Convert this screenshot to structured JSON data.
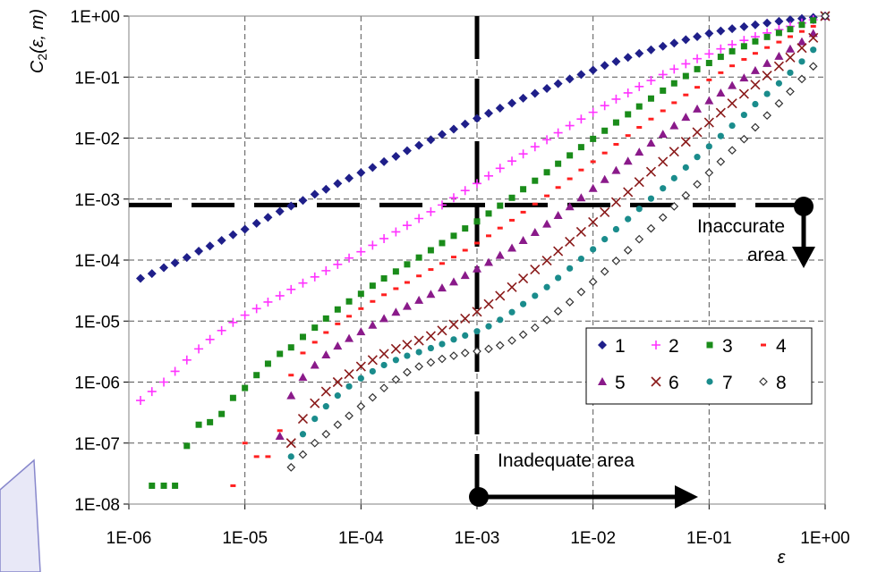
{
  "chart_data": {
    "type": "scatter",
    "title": "",
    "xlabel": "ε",
    "ylabel": {
      "base": "C",
      "sub": "2",
      "args": "(ε, m)"
    },
    "x_scale": "log",
    "y_scale": "log",
    "xlim": [
      1e-06,
      1
    ],
    "ylim": [
      1e-08,
      1
    ],
    "x_ticks": [
      "1E-06",
      "1E-05",
      "1E-04",
      "1E-03",
      "1E-02",
      "1E-01",
      "1E+00"
    ],
    "y_ticks": [
      "1E+00",
      "1E-01",
      "1E-02",
      "1E-03",
      "1E-04",
      "1E-05",
      "1E-06",
      "1E-07",
      "1E-08"
    ],
    "grid": true,
    "legend_position": "lower-right",
    "series": [
      {
        "name": "1",
        "color": "#1f1f8a",
        "marker": "diamond",
        "x": [
          1.26e-06,
          1.58e-06,
          2e-06,
          2.5e-06,
          3.16e-06,
          4e-06,
          5e-06,
          6.3e-06,
          7.9e-06,
          1e-05,
          1.26e-05,
          1.58e-05,
          2e-05,
          2.5e-05,
          3.16e-05,
          4e-05,
          5e-05,
          6.3e-05,
          7.9e-05,
          0.0001,
          0.000126,
          0.000158,
          0.0002,
          0.00025,
          0.000316,
          0.0004,
          0.0005,
          0.00063,
          0.00079,
          0.001,
          0.00126,
          0.00158,
          0.002,
          0.0025,
          0.00316,
          0.004,
          0.005,
          0.0063,
          0.0079,
          0.01,
          0.0126,
          0.0158,
          0.02,
          0.025,
          0.0316,
          0.04,
          0.05,
          0.063,
          0.079,
          0.1,
          0.126,
          0.158,
          0.2,
          0.25,
          0.316,
          0.4,
          0.5,
          0.63,
          0.79,
          1
        ],
        "y": [
          5e-05,
          6e-05,
          7.5e-05,
          9e-05,
          0.00011,
          0.00014,
          0.00017,
          0.00021,
          0.00026,
          0.00032,
          0.0004,
          0.0005,
          0.00063,
          0.00077,
          0.00095,
          0.0012,
          0.00145,
          0.0018,
          0.0022,
          0.0027,
          0.0033,
          0.0041,
          0.005,
          0.0062,
          0.0076,
          0.0094,
          0.0115,
          0.014,
          0.017,
          0.021,
          0.0255,
          0.031,
          0.0375,
          0.045,
          0.054,
          0.065,
          0.078,
          0.093,
          0.11,
          0.13,
          0.155,
          0.18,
          0.21,
          0.245,
          0.28,
          0.32,
          0.36,
          0.41,
          0.46,
          0.52,
          0.57,
          0.62,
          0.67,
          0.72,
          0.77,
          0.82,
          0.87,
          0.91,
          0.95,
          1
        ]
      },
      {
        "name": "2",
        "color": "#ff33ff",
        "marker": "plus",
        "x": [
          1.26e-06,
          1.58e-06,
          2e-06,
          2.5e-06,
          3.16e-06,
          4e-06,
          5e-06,
          6.3e-06,
          7.9e-06,
          1e-05,
          1.26e-05,
          1.58e-05,
          2e-05,
          2.5e-05,
          3.16e-05,
          4e-05,
          5e-05,
          6.3e-05,
          7.9e-05,
          0.0001,
          0.000126,
          0.000158,
          0.0002,
          0.00025,
          0.000316,
          0.0004,
          0.0005,
          0.00063,
          0.00079,
          0.001,
          0.00126,
          0.00158,
          0.002,
          0.0025,
          0.00316,
          0.004,
          0.005,
          0.0063,
          0.0079,
          0.01,
          0.0126,
          0.0158,
          0.02,
          0.025,
          0.0316,
          0.04,
          0.05,
          0.063,
          0.079,
          0.1,
          0.126,
          0.158,
          0.2,
          0.25,
          0.316,
          0.4,
          0.5,
          0.63,
          0.79,
          1
        ],
        "y": [
          5e-07,
          7e-07,
          1e-06,
          1.5e-06,
          2.3e-06,
          3.5e-06,
          5e-06,
          7e-06,
          9.5e-06,
          1.25e-05,
          1.6e-05,
          2.05e-05,
          2.6e-05,
          3.3e-05,
          4.2e-05,
          5.3e-05,
          6.7e-05,
          8.5e-05,
          0.000108,
          0.000137,
          0.000175,
          0.000225,
          0.00029,
          0.00037,
          0.00048,
          0.00062,
          0.0008,
          0.00105,
          0.00138,
          0.0018,
          0.0024,
          0.0032,
          0.0042,
          0.0055,
          0.0072,
          0.0094,
          0.0122,
          0.016,
          0.0205,
          0.0265,
          0.034,
          0.0435,
          0.055,
          0.07,
          0.088,
          0.11,
          0.135,
          0.165,
          0.2,
          0.24,
          0.29,
          0.34,
          0.4,
          0.46,
          0.53,
          0.6,
          0.68,
          0.77,
          0.87,
          1
        ]
      },
      {
        "name": "3",
        "color": "#1a8c1a",
        "marker": "square",
        "x": [
          1.58e-06,
          2e-06,
          2.5e-06,
          3.16e-06,
          4e-06,
          5e-06,
          6.3e-06,
          7.9e-06,
          1e-05,
          1.26e-05,
          1.58e-05,
          2e-05,
          2.5e-05,
          3.16e-05,
          4e-05,
          5e-05,
          6.3e-05,
          7.9e-05,
          0.0001,
          0.000126,
          0.000158,
          0.0002,
          0.00025,
          0.000316,
          0.0004,
          0.0005,
          0.00063,
          0.00079,
          0.001,
          0.00126,
          0.00158,
          0.002,
          0.0025,
          0.00316,
          0.004,
          0.005,
          0.0063,
          0.0079,
          0.01,
          0.0126,
          0.0158,
          0.02,
          0.025,
          0.0316,
          0.04,
          0.05,
          0.063,
          0.079,
          0.1,
          0.126,
          0.158,
          0.2,
          0.25,
          0.316,
          0.4,
          0.5,
          0.63,
          0.79,
          1
        ],
        "y": [
          2e-08,
          2e-08,
          2e-08,
          9e-08,
          2e-07,
          2.2e-07,
          3e-07,
          5.5e-07,
          8e-07,
          1.3e-06,
          2e-06,
          2.9e-06,
          3.7e-06,
          5.5e-06,
          7.8e-06,
          1.1e-05,
          1.55e-05,
          2.1e-05,
          2.8e-05,
          3.8e-05,
          5e-05,
          6.5e-05,
          8.5e-05,
          0.00011,
          0.000145,
          0.00019,
          0.00025,
          0.00033,
          0.00043,
          0.00058,
          0.00078,
          0.00105,
          0.00145,
          0.002,
          0.00275,
          0.0038,
          0.0052,
          0.0071,
          0.0097,
          0.0132,
          0.018,
          0.0245,
          0.033,
          0.0445,
          0.06,
          0.079,
          0.104,
          0.135,
          0.17,
          0.215,
          0.265,
          0.32,
          0.385,
          0.455,
          0.53,
          0.61,
          0.72,
          0.85,
          1
        ]
      },
      {
        "name": "4",
        "color": "#ff2020",
        "marker": "dash",
        "x": [
          7.9e-06,
          1e-05,
          1.26e-05,
          1.58e-05,
          2e-05,
          2.5e-05,
          3.16e-05,
          4e-05,
          5e-05,
          6.3e-05,
          7.9e-05,
          0.0001,
          0.000126,
          0.000158,
          0.0002,
          0.00025,
          0.000316,
          0.0004,
          0.0005,
          0.00063,
          0.00079,
          0.001,
          0.00126,
          0.00158,
          0.002,
          0.0025,
          0.00316,
          0.004,
          0.005,
          0.0063,
          0.0079,
          0.01,
          0.0126,
          0.0158,
          0.02,
          0.025,
          0.0316,
          0.04,
          0.05,
          0.063,
          0.079,
          0.1,
          0.126,
          0.158,
          0.2,
          0.25,
          0.316,
          0.4,
          0.5,
          0.63,
          0.79,
          1
        ],
        "y": [
          2e-08,
          1e-07,
          6e-08,
          6e-08,
          1.6e-07,
          1.3e-06,
          3e-06,
          4.5e-06,
          6.5e-06,
          9e-06,
          1.2e-05,
          1.6e-05,
          2.1e-05,
          2.7e-05,
          3.4e-05,
          4.3e-05,
          5.5e-05,
          7e-05,
          8.8e-05,
          0.000112,
          0.000145,
          0.00019,
          0.00025,
          0.000335,
          0.00045,
          0.00061,
          0.00083,
          0.00113,
          0.00155,
          0.00215,
          0.003,
          0.0041,
          0.0057,
          0.0079,
          0.011,
          0.015,
          0.0205,
          0.028,
          0.038,
          0.051,
          0.068,
          0.09,
          0.118,
          0.153,
          0.195,
          0.245,
          0.305,
          0.375,
          0.46,
          0.56,
          0.68,
          1
        ]
      },
      {
        "name": "5",
        "color": "#8a1a8a",
        "marker": "triangle",
        "x": [
          2e-05,
          2.5e-05,
          3.16e-05,
          4e-05,
          5e-05,
          6.3e-05,
          7.9e-05,
          0.0001,
          0.000126,
          0.000158,
          0.0002,
          0.00025,
          0.000316,
          0.0004,
          0.0005,
          0.00063,
          0.00079,
          0.001,
          0.00126,
          0.00158,
          0.002,
          0.0025,
          0.00316,
          0.004,
          0.005,
          0.0063,
          0.0079,
          0.01,
          0.0126,
          0.0158,
          0.02,
          0.025,
          0.0316,
          0.04,
          0.05,
          0.063,
          0.079,
          0.1,
          0.126,
          0.158,
          0.2,
          0.25,
          0.316,
          0.4,
          0.5,
          0.63,
          0.79,
          1
        ],
        "y": [
          1.3e-07,
          6e-07,
          1.2e-06,
          1.9e-06,
          2.8e-06,
          3.9e-06,
          5.2e-06,
          6.7e-06,
          8.6e-06,
          1.1e-05,
          1.4e-05,
          1.75e-05,
          2.2e-05,
          2.75e-05,
          3.5e-05,
          4.4e-05,
          5.6e-05,
          7.2e-05,
          9.2e-05,
          0.00012,
          0.000158,
          0.00021,
          0.000285,
          0.00039,
          0.00054,
          0.00075,
          0.00105,
          0.0015,
          0.0021,
          0.00295,
          0.0042,
          0.0059,
          0.0083,
          0.0116,
          0.016,
          0.022,
          0.03,
          0.041,
          0.055,
          0.073,
          0.097,
          0.128,
          0.168,
          0.22,
          0.29,
          0.38,
          0.52,
          1
        ]
      },
      {
        "name": "6",
        "color": "#8a1a1a",
        "marker": "x",
        "x": [
          2.5e-05,
          3.16e-05,
          4e-05,
          5e-05,
          6.3e-05,
          7.9e-05,
          0.0001,
          0.000126,
          0.000158,
          0.0002,
          0.00025,
          0.000316,
          0.0004,
          0.0005,
          0.00063,
          0.00079,
          0.001,
          0.00126,
          0.00158,
          0.002,
          0.0025,
          0.00316,
          0.004,
          0.005,
          0.0063,
          0.0079,
          0.01,
          0.0126,
          0.0158,
          0.02,
          0.025,
          0.0316,
          0.04,
          0.05,
          0.063,
          0.079,
          0.1,
          0.126,
          0.158,
          0.2,
          0.25,
          0.316,
          0.4,
          0.5,
          0.63,
          0.79,
          1
        ],
        "y": [
          1e-07,
          2.5e-07,
          4.5e-07,
          7e-07,
          1e-06,
          1.35e-06,
          1.8e-06,
          2.3e-06,
          2.9e-06,
          3.5e-06,
          4.1e-06,
          4.8e-06,
          5.7e-06,
          7e-06,
          8.8e-06,
          1.1e-05,
          1.42e-05,
          1.9e-05,
          2.6e-05,
          3.6e-05,
          5e-05,
          7e-05,
          9.8e-05,
          0.00014,
          0.0002,
          0.00029,
          0.00042,
          0.00061,
          0.00089,
          0.0013,
          0.0019,
          0.0028,
          0.0041,
          0.006,
          0.0087,
          0.0125,
          0.018,
          0.026,
          0.037,
          0.053,
          0.075,
          0.106,
          0.15,
          0.21,
          0.3,
          0.44,
          1
        ]
      },
      {
        "name": "7",
        "color": "#1a8c8c",
        "marker": "circle",
        "x": [
          2.5e-05,
          3.16e-05,
          4e-05,
          5e-05,
          6.3e-05,
          7.9e-05,
          0.0001,
          0.000126,
          0.000158,
          0.0002,
          0.00025,
          0.000316,
          0.0004,
          0.0005,
          0.00063,
          0.00079,
          0.001,
          0.00126,
          0.00158,
          0.002,
          0.0025,
          0.00316,
          0.004,
          0.005,
          0.0063,
          0.0079,
          0.01,
          0.0126,
          0.0158,
          0.02,
          0.025,
          0.0316,
          0.04,
          0.05,
          0.063,
          0.079,
          0.1,
          0.126,
          0.158,
          0.2,
          0.25,
          0.316,
          0.4,
          0.5,
          0.63,
          0.79,
          1
        ],
        "y": [
          6e-08,
          1.4e-07,
          2.5e-07,
          4e-07,
          6e-07,
          8.5e-07,
          1.15e-06,
          1.5e-06,
          1.9e-06,
          2.3e-06,
          2.7e-06,
          3.1e-06,
          3.6e-06,
          4.2e-06,
          5e-06,
          5.8e-06,
          6.8e-06,
          8.2e-06,
          1.05e-05,
          1.4e-05,
          1.9e-05,
          2.6e-05,
          3.6e-05,
          5.1e-05,
          7.3e-05,
          0.000105,
          0.00015,
          0.00022,
          0.00032,
          0.00047,
          0.00069,
          0.00102,
          0.0015,
          0.0022,
          0.0033,
          0.0049,
          0.0073,
          0.0108,
          0.016,
          0.024,
          0.036,
          0.053,
          0.079,
          0.118,
          0.18,
          0.28,
          1
        ]
      },
      {
        "name": "8",
        "color": "#333333",
        "marker": "open-diamond",
        "x": [
          2.5e-05,
          3.16e-05,
          4e-05,
          5e-05,
          6.3e-05,
          7.9e-05,
          0.0001,
          0.000126,
          0.000158,
          0.0002,
          0.00025,
          0.000316,
          0.0004,
          0.0005,
          0.00063,
          0.00079,
          0.001,
          0.00126,
          0.00158,
          0.002,
          0.0025,
          0.00316,
          0.004,
          0.005,
          0.0063,
          0.0079,
          0.01,
          0.0126,
          0.0158,
          0.02,
          0.025,
          0.0316,
          0.04,
          0.05,
          0.063,
          0.079,
          0.1,
          0.126,
          0.158,
          0.2,
          0.25,
          0.316,
          0.4,
          0.5,
          0.63,
          0.79,
          1
        ],
        "y": [
          4e-08,
          6.5e-08,
          1e-07,
          1.4e-07,
          2e-07,
          2.8e-07,
          4e-07,
          5.6e-07,
          8e-07,
          1.1e-06,
          1.45e-06,
          1.8e-06,
          2.1e-06,
          2.4e-06,
          2.7e-06,
          3e-06,
          3.2e-06,
          3.5e-06,
          4e-06,
          4.8e-06,
          6e-06,
          7.8e-06,
          1.04e-05,
          1.45e-05,
          2.05e-05,
          3e-05,
          4.4e-05,
          6.5e-05,
          9.7e-05,
          0.000145,
          0.00022,
          0.00033,
          0.0005,
          0.00076,
          0.00115,
          0.00175,
          0.0027,
          0.0041,
          0.0063,
          0.0096,
          0.015,
          0.0235,
          0.037,
          0.058,
          0.093,
          0.15,
          1
        ]
      }
    ],
    "reference_lines": [
      {
        "orientation": "horizontal",
        "value": 0.0008
      },
      {
        "orientation": "vertical",
        "value": 0.001
      }
    ],
    "annotations": [
      {
        "line1": "Inaccurate",
        "line2": "area"
      },
      {
        "text": "Inadequate area"
      }
    ]
  }
}
